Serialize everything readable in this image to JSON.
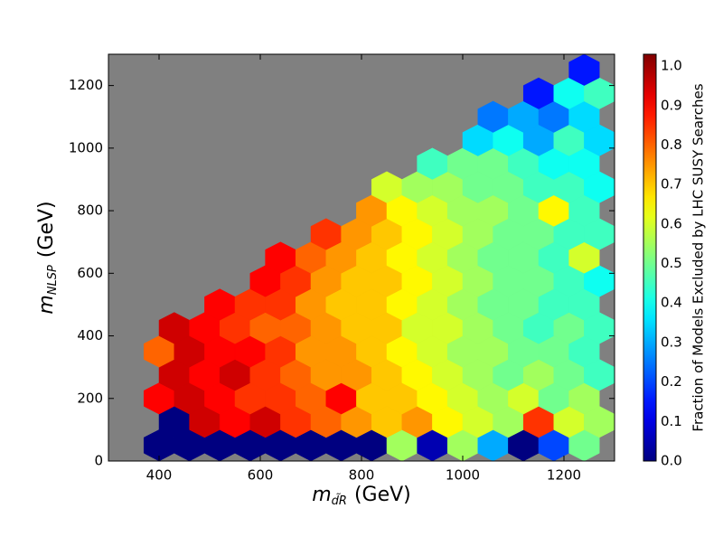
{
  "chart_data": {
    "type": "hexbin",
    "xlabel": [
      "m",
      "d̃R",
      "(GeV)"
    ],
    "ylabel": [
      "m",
      "NLSP",
      "(GeV)"
    ],
    "colorbar_label": "Fraction of Models Excluded by LHC SUSY Searches",
    "colormap": "jet",
    "background": "#808080",
    "xlim": [
      300,
      1300
    ],
    "xticks": [
      400,
      600,
      800,
      1000,
      1200
    ],
    "ylim": [
      0,
      1300
    ],
    "yticks": [
      0,
      200,
      400,
      600,
      800,
      1000,
      1200
    ],
    "clim": [
      0,
      1.03
    ],
    "cticks": [
      {
        "value": 0,
        "label": "0.0"
      },
      {
        "value": 0.1,
        "label": "0.1"
      },
      {
        "value": 0.2,
        "label": "0.2"
      },
      {
        "value": 0.3,
        "label": "0.3"
      },
      {
        "value": 0.4,
        "label": "0.4"
      },
      {
        "value": 0.5,
        "label": "0.5"
      },
      {
        "value": 0.6,
        "label": "0.6"
      },
      {
        "value": 0.7,
        "label": "0.7"
      },
      {
        "value": 0.8,
        "label": "0.8"
      },
      {
        "value": 0.9,
        "label": "0.9"
      },
      {
        "value": 1,
        "label": "1.0"
      }
    ],
    "hexes": [
      [
        400,
        50,
        0
      ],
      [
        460,
        50,
        0
      ],
      [
        520,
        50,
        0
      ],
      [
        580,
        50,
        0
      ],
      [
        640,
        50,
        0
      ],
      [
        700,
        50,
        0
      ],
      [
        760,
        50,
        0
      ],
      [
        820,
        50,
        0
      ],
      [
        880,
        50,
        0.55
      ],
      [
        940,
        50,
        0.05
      ],
      [
        1000,
        50,
        0.55
      ],
      [
        1060,
        50,
        0.3
      ],
      [
        1120,
        50,
        0
      ],
      [
        1180,
        50,
        0.2
      ],
      [
        1240,
        50,
        0.5
      ],
      [
        430,
        125,
        0
      ],
      [
        490,
        125,
        0.95
      ],
      [
        550,
        125,
        0.9
      ],
      [
        610,
        125,
        0.95
      ],
      [
        670,
        125,
        0.85
      ],
      [
        730,
        125,
        0.8
      ],
      [
        790,
        125,
        0.75
      ],
      [
        850,
        125,
        0.7
      ],
      [
        910,
        125,
        0.75
      ],
      [
        970,
        125,
        0.65
      ],
      [
        1030,
        125,
        0.6
      ],
      [
        1090,
        125,
        0.55
      ],
      [
        1150,
        125,
        0.85
      ],
      [
        1210,
        125,
        0.6
      ],
      [
        1270,
        125,
        0.55
      ],
      [
        400,
        200,
        0.9
      ],
      [
        460,
        200,
        0.95
      ],
      [
        520,
        200,
        0.9
      ],
      [
        580,
        200,
        0.85
      ],
      [
        640,
        200,
        0.85
      ],
      [
        700,
        200,
        0.8
      ],
      [
        760,
        200,
        0.9
      ],
      [
        820,
        200,
        0.7
      ],
      [
        880,
        200,
        0.7
      ],
      [
        940,
        200,
        0.65
      ],
      [
        1000,
        200,
        0.6
      ],
      [
        1060,
        200,
        0.55
      ],
      [
        1120,
        200,
        0.6
      ],
      [
        1180,
        200,
        0.5
      ],
      [
        1240,
        200,
        0.55
      ],
      [
        430,
        275,
        0.95
      ],
      [
        490,
        275,
        0.9
      ],
      [
        550,
        275,
        0.95
      ],
      [
        610,
        275,
        0.85
      ],
      [
        670,
        275,
        0.8
      ],
      [
        730,
        275,
        0.75
      ],
      [
        790,
        275,
        0.75
      ],
      [
        850,
        275,
        0.7
      ],
      [
        910,
        275,
        0.65
      ],
      [
        970,
        275,
        0.6
      ],
      [
        1030,
        275,
        0.55
      ],
      [
        1090,
        275,
        0.5
      ],
      [
        1150,
        275,
        0.55
      ],
      [
        1210,
        275,
        0.5
      ],
      [
        1270,
        275,
        0.45
      ],
      [
        400,
        350,
        0.8
      ],
      [
        460,
        350,
        0.95
      ],
      [
        520,
        350,
        0.9
      ],
      [
        580,
        350,
        0.9
      ],
      [
        640,
        350,
        0.85
      ],
      [
        700,
        350,
        0.75
      ],
      [
        760,
        350,
        0.75
      ],
      [
        820,
        350,
        0.7
      ],
      [
        880,
        350,
        0.65
      ],
      [
        940,
        350,
        0.6
      ],
      [
        1000,
        350,
        0.55
      ],
      [
        1060,
        350,
        0.55
      ],
      [
        1120,
        350,
        0.5
      ],
      [
        1180,
        350,
        0.5
      ],
      [
        1240,
        350,
        0.45
      ],
      [
        430,
        425,
        0.95
      ],
      [
        490,
        425,
        0.9
      ],
      [
        550,
        425,
        0.85
      ],
      [
        610,
        425,
        0.8
      ],
      [
        670,
        425,
        0.8
      ],
      [
        730,
        425,
        0.75
      ],
      [
        790,
        425,
        0.7
      ],
      [
        850,
        425,
        0.7
      ],
      [
        910,
        425,
        0.6
      ],
      [
        970,
        425,
        0.6
      ],
      [
        1030,
        425,
        0.55
      ],
      [
        1090,
        425,
        0.5
      ],
      [
        1150,
        425,
        0.45
      ],
      [
        1210,
        425,
        0.5
      ],
      [
        1270,
        425,
        0.45
      ],
      [
        520,
        500,
        0.9
      ],
      [
        580,
        500,
        0.85
      ],
      [
        640,
        500,
        0.85
      ],
      [
        700,
        500,
        0.75
      ],
      [
        760,
        500,
        0.7
      ],
      [
        820,
        500,
        0.7
      ],
      [
        880,
        500,
        0.65
      ],
      [
        940,
        500,
        0.6
      ],
      [
        1000,
        500,
        0.55
      ],
      [
        1060,
        500,
        0.5
      ],
      [
        1120,
        500,
        0.5
      ],
      [
        1180,
        500,
        0.45
      ],
      [
        1240,
        500,
        0.45
      ],
      [
        610,
        575,
        0.9
      ],
      [
        670,
        575,
        0.85
      ],
      [
        730,
        575,
        0.75
      ],
      [
        790,
        575,
        0.7
      ],
      [
        850,
        575,
        0.7
      ],
      [
        910,
        575,
        0.65
      ],
      [
        970,
        575,
        0.6
      ],
      [
        1030,
        575,
        0.55
      ],
      [
        1090,
        575,
        0.5
      ],
      [
        1150,
        575,
        0.5
      ],
      [
        1210,
        575,
        0.45
      ],
      [
        1270,
        575,
        0.4
      ],
      [
        640,
        650,
        0.9
      ],
      [
        700,
        650,
        0.8
      ],
      [
        760,
        650,
        0.75
      ],
      [
        820,
        650,
        0.7
      ],
      [
        880,
        650,
        0.65
      ],
      [
        940,
        650,
        0.6
      ],
      [
        1000,
        650,
        0.55
      ],
      [
        1060,
        650,
        0.5
      ],
      [
        1120,
        650,
        0.5
      ],
      [
        1180,
        650,
        0.45
      ],
      [
        1240,
        650,
        0.6
      ],
      [
        730,
        725,
        0.85
      ],
      [
        790,
        725,
        0.75
      ],
      [
        850,
        725,
        0.7
      ],
      [
        910,
        725,
        0.65
      ],
      [
        970,
        725,
        0.6
      ],
      [
        1030,
        725,
        0.55
      ],
      [
        1090,
        725,
        0.5
      ],
      [
        1150,
        725,
        0.5
      ],
      [
        1210,
        725,
        0.45
      ],
      [
        1270,
        725,
        0.45
      ],
      [
        820,
        800,
        0.75
      ],
      [
        880,
        800,
        0.65
      ],
      [
        940,
        800,
        0.6
      ],
      [
        1000,
        800,
        0.55
      ],
      [
        1060,
        800,
        0.55
      ],
      [
        1120,
        800,
        0.5
      ],
      [
        1180,
        800,
        0.65
      ],
      [
        1240,
        800,
        0.45
      ],
      [
        850,
        875,
        0.6
      ],
      [
        910,
        875,
        0.55
      ],
      [
        970,
        875,
        0.55
      ],
      [
        1030,
        875,
        0.5
      ],
      [
        1090,
        875,
        0.5
      ],
      [
        1150,
        875,
        0.45
      ],
      [
        1210,
        875,
        0.45
      ],
      [
        1270,
        875,
        0.4
      ],
      [
        940,
        950,
        0.45
      ],
      [
        1000,
        950,
        0.5
      ],
      [
        1060,
        950,
        0.5
      ],
      [
        1120,
        950,
        0.45
      ],
      [
        1180,
        950,
        0.4
      ],
      [
        1240,
        950,
        0.4
      ],
      [
        1030,
        1025,
        0.35
      ],
      [
        1090,
        1025,
        0.4
      ],
      [
        1150,
        1025,
        0.3
      ],
      [
        1210,
        1025,
        0.45
      ],
      [
        1270,
        1025,
        0.35
      ],
      [
        1060,
        1100,
        0.25
      ],
      [
        1120,
        1100,
        0.3
      ],
      [
        1180,
        1100,
        0.25
      ],
      [
        1240,
        1100,
        0.35
      ],
      [
        1150,
        1175,
        0.15
      ],
      [
        1210,
        1175,
        0.4
      ],
      [
        1270,
        1175,
        0.45
      ],
      [
        1240,
        1250,
        0.15
      ]
    ]
  }
}
